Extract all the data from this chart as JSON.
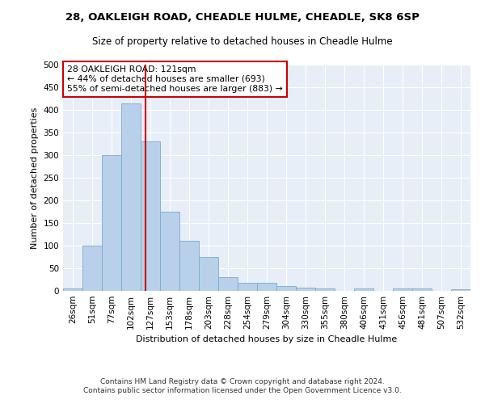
{
  "title1": "28, OAKLEIGH ROAD, CHEADLE HULME, CHEADLE, SK8 6SP",
  "title2": "Size of property relative to detached houses in Cheadle Hulme",
  "xlabel": "Distribution of detached houses by size in Cheadle Hulme",
  "ylabel": "Number of detached properties",
  "footer1": "Contains HM Land Registry data © Crown copyright and database right 2024.",
  "footer2": "Contains public sector information licensed under the Open Government Licence v3.0.",
  "categories": [
    "26sqm",
    "51sqm",
    "77sqm",
    "102sqm",
    "127sqm",
    "153sqm",
    "178sqm",
    "203sqm",
    "228sqm",
    "254sqm",
    "279sqm",
    "304sqm",
    "330sqm",
    "355sqm",
    "380sqm",
    "406sqm",
    "431sqm",
    "456sqm",
    "481sqm",
    "507sqm",
    "532sqm"
  ],
  "values": [
    5,
    100,
    300,
    415,
    330,
    175,
    110,
    75,
    30,
    18,
    18,
    10,
    8,
    5,
    0,
    5,
    0,
    5,
    5,
    0,
    3
  ],
  "bar_color": "#b8d0ea",
  "bar_edge_color": "#7aaad0",
  "vline_color": "#cc0000",
  "annotation_title": "28 OAKLEIGH ROAD: 121sqm",
  "annotation_line2": "← 44% of detached houses are smaller (693)",
  "annotation_line3": "55% of semi-detached houses are larger (883) →",
  "annotation_box_color": "#ffffff",
  "annotation_box_edge": "#cc0000",
  "ylim": [
    0,
    500
  ],
  "yticks": [
    0,
    50,
    100,
    150,
    200,
    250,
    300,
    350,
    400,
    450,
    500
  ],
  "background_color": "#e8eef7",
  "fig_bg_color": "#ffffff",
  "title1_fontsize": 9.5,
  "title2_fontsize": 8.5,
  "xlabel_fontsize": 8.0,
  "ylabel_fontsize": 8.0,
  "tick_fontsize": 7.5,
  "footer_fontsize": 6.5
}
